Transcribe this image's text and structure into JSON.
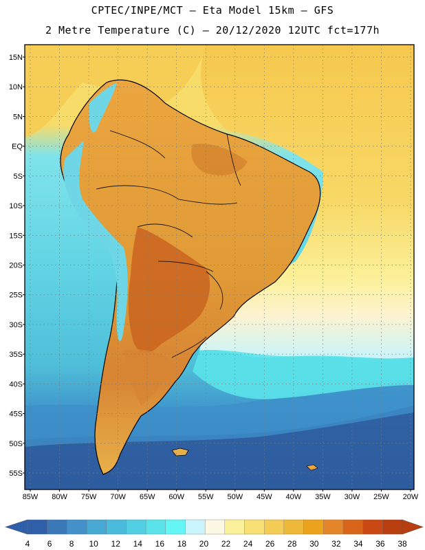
{
  "title": {
    "line1": "CPTEC/INPE/MCT –  Eta Model 15km – GFS",
    "line2": "2 Metre Temperature (C) – 20/12/2020 12UTC fct=177h"
  },
  "map": {
    "lat_labels": [
      "15N",
      "10N",
      "5N",
      "EQ",
      "5S",
      "10S",
      "15S",
      "20S",
      "25S",
      "30S",
      "35S",
      "40S",
      "45S",
      "50S",
      "55S"
    ],
    "lon_labels": [
      "85W",
      "80W",
      "75W",
      "70W",
      "65W",
      "60W",
      "55W",
      "50W",
      "45W",
      "40W",
      "35W",
      "30W",
      "25W",
      "20W"
    ],
    "colors": {
      "ocean_cold": "#2e5c9e",
      "ocean_cool": "#3d8fc9",
      "ocean_mid": "#4fc3d9",
      "ocean_warm": "#7fe3ea",
      "atl_warm": "#f8d35a",
      "land_warm": "#e8a83a",
      "land_hot": "#c9641f",
      "andes": "#6fd6e6"
    }
  },
  "colorbar": {
    "labels": [
      "4",
      "6",
      "8",
      "10",
      "12",
      "14",
      "16",
      "18",
      "20",
      "22",
      "24",
      "26",
      "28",
      "30",
      "32",
      "34",
      "36",
      "38"
    ],
    "colors": [
      "#2f5fa8",
      "#3b78b8",
      "#4391c8",
      "#48a8d4",
      "#4bbbdb",
      "#52cfe2",
      "#5be3ea",
      "#66f5f5",
      "#c9f4fb",
      "#fdf8e4",
      "#fbf19a",
      "#f8e074",
      "#f3cc55",
      "#eeb83a",
      "#eba31c",
      "#e5862a",
      "#d9651a",
      "#c94813",
      "#b83e10"
    ],
    "left_arrow_color": "#2f5fa8",
    "right_arrow_color": "#b83e10"
  }
}
